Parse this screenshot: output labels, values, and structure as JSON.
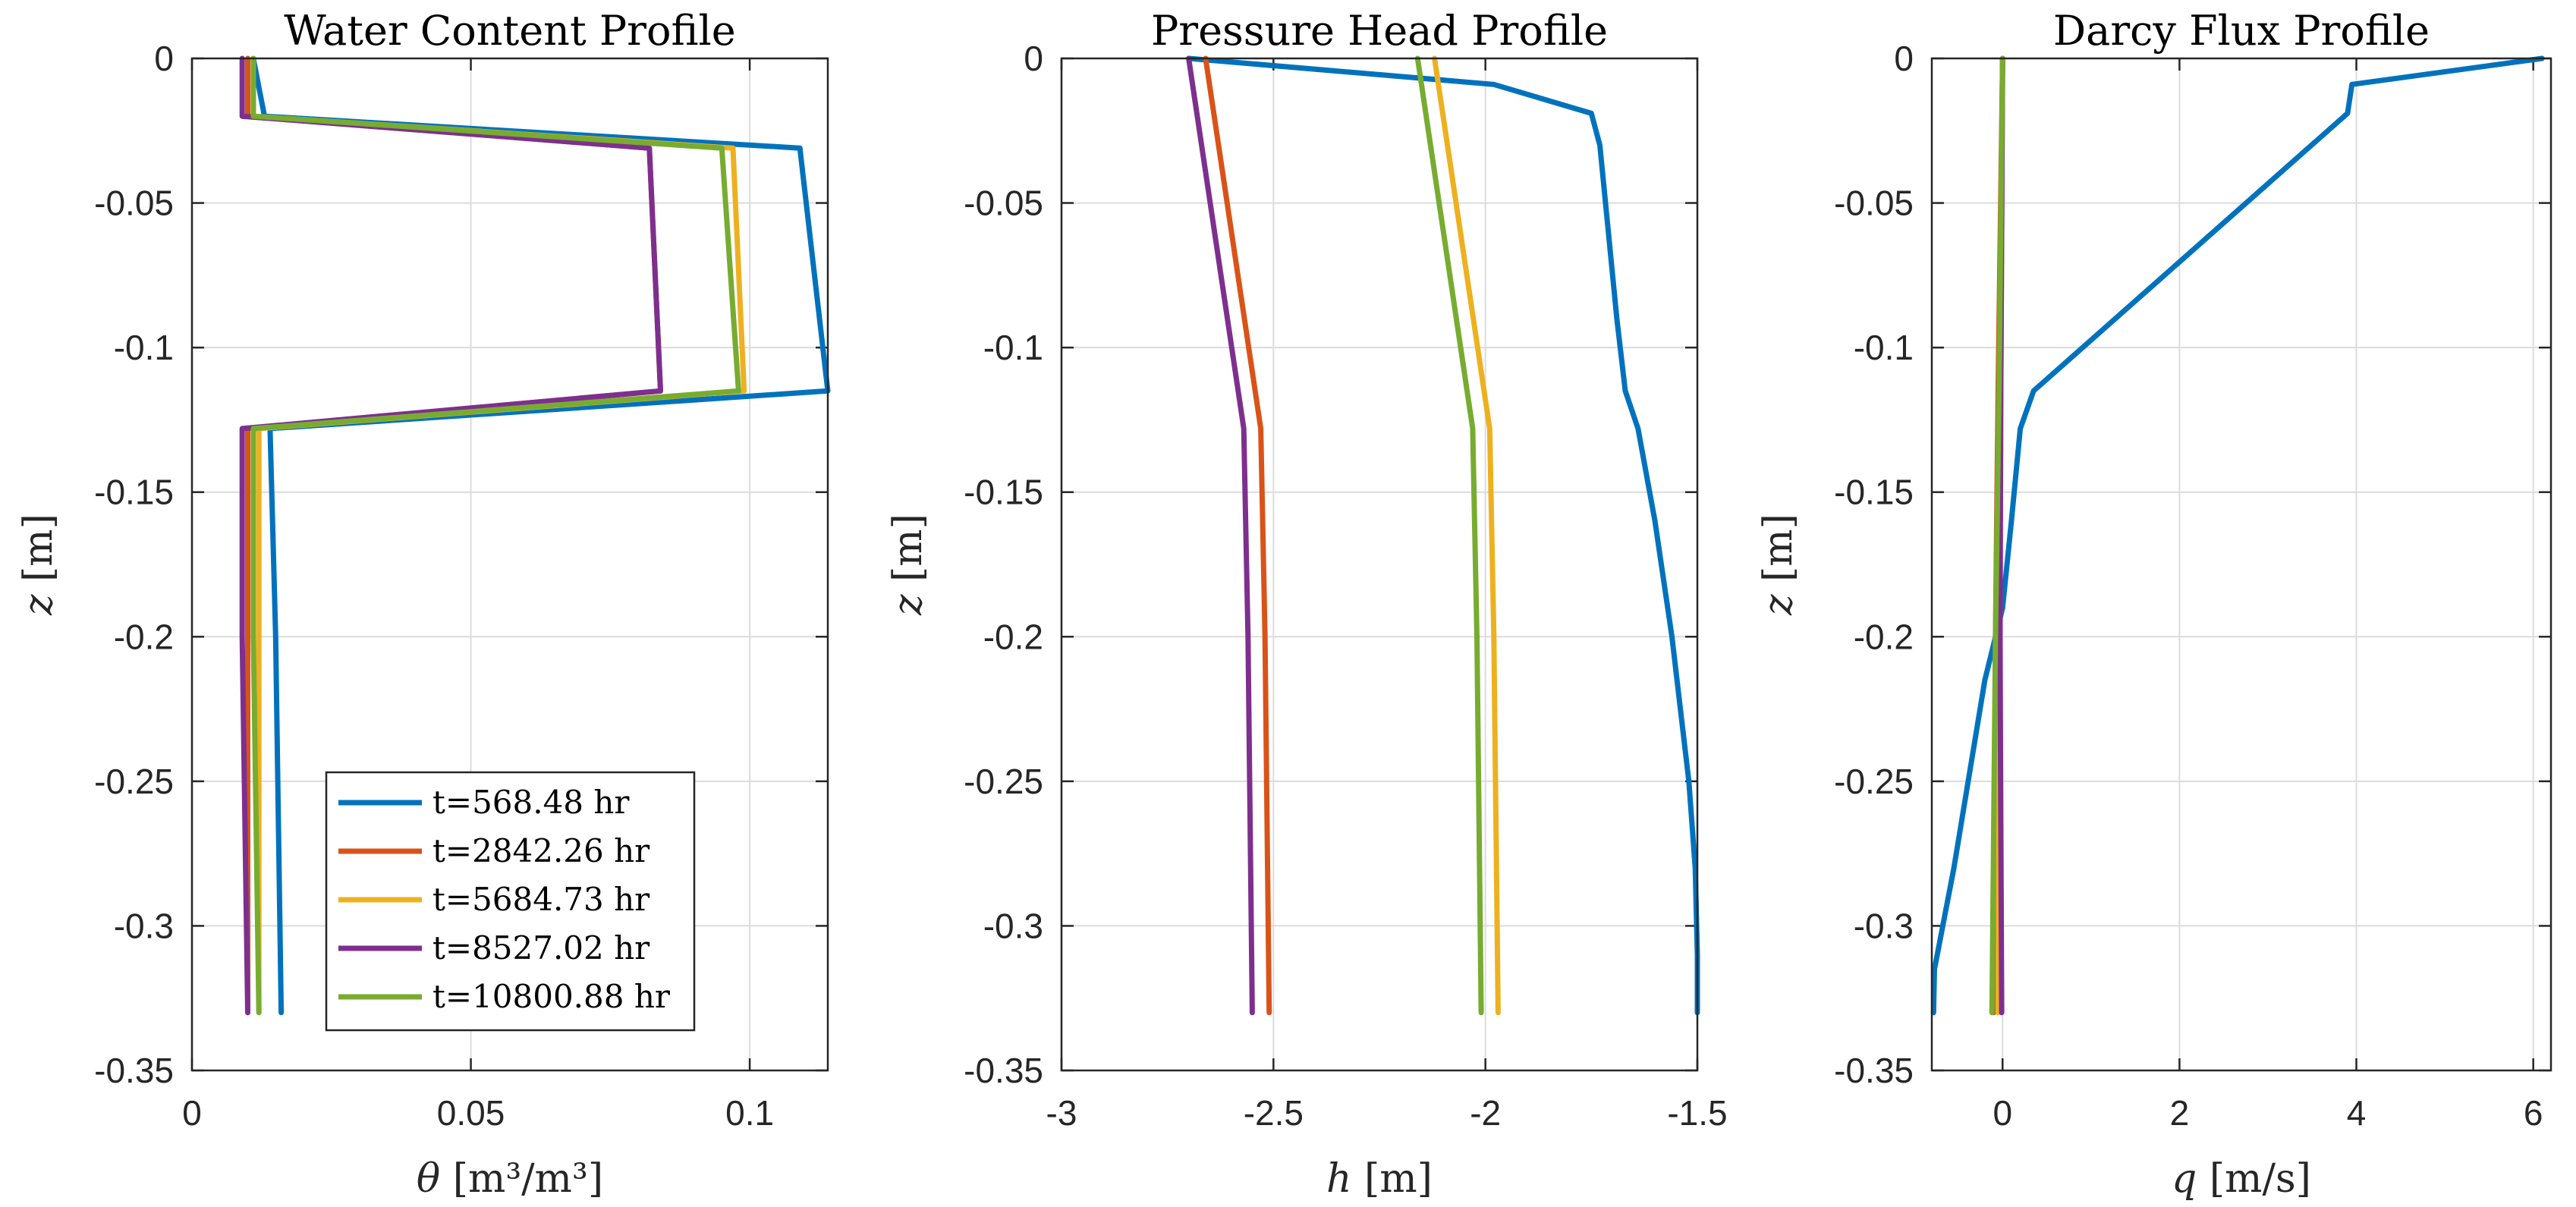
{
  "chart_data": [
    {
      "type": "line",
      "title": "Water Content Profile",
      "xlabel": "θ [m³/m³]",
      "ylabel": "z [m]",
      "xlim": [
        0,
        0.114
      ],
      "ylim": [
        -0.35,
        0
      ],
      "xticks": [
        0,
        0.05,
        0.1
      ],
      "xtick_labels": [
        "0",
        "0.05",
        "0.1"
      ],
      "yticks": [
        0,
        -0.05,
        -0.1,
        -0.15,
        -0.2,
        -0.25,
        -0.3,
        -0.35
      ],
      "ytick_labels": [
        "0",
        "-0.05",
        "-0.1",
        "-0.15",
        "-0.2",
        "-0.25",
        "-0.3",
        "-0.35"
      ],
      "grid": true,
      "legend": "bottom-right",
      "series": [
        {
          "name": "t=568.48 hr",
          "color": "#0072BD",
          "x": [
            0.011,
            0.012,
            0.013,
            0.109,
            0.114,
            0.014,
            0.015,
            0.016
          ],
          "y": [
            0,
            -0.01,
            -0.02,
            -0.031,
            -0.115,
            -0.128,
            -0.2,
            -0.33
          ]
        },
        {
          "name": "t=2842.26 hr",
          "color": "#D95319",
          "x": [
            0.01,
            0.01,
            0.01,
            0.082,
            0.084,
            0.01,
            0.01,
            0.01
          ],
          "y": [
            0,
            -0.01,
            -0.02,
            -0.031,
            -0.115,
            -0.128,
            -0.2,
            -0.33
          ]
        },
        {
          "name": "t=5684.73 hr",
          "color": "#EDB120",
          "x": [
            0.011,
            0.011,
            0.011,
            0.097,
            0.099,
            0.012,
            0.012,
            0.012
          ],
          "y": [
            0,
            -0.01,
            -0.02,
            -0.031,
            -0.115,
            -0.128,
            -0.2,
            -0.33
          ]
        },
        {
          "name": "t=8527.02 hr",
          "color": "#7E2F8E",
          "x": [
            0.009,
            0.009,
            0.009,
            0.082,
            0.084,
            0.009,
            0.009,
            0.01
          ],
          "y": [
            0,
            -0.01,
            -0.02,
            -0.031,
            -0.115,
            -0.128,
            -0.2,
            -0.33
          ]
        },
        {
          "name": "t=10800.88 hr",
          "color": "#77AC30",
          "x": [
            0.011,
            0.011,
            0.011,
            0.095,
            0.098,
            0.011,
            0.011,
            0.012
          ],
          "y": [
            0,
            -0.01,
            -0.02,
            -0.031,
            -0.115,
            -0.128,
            -0.2,
            -0.33
          ]
        }
      ]
    },
    {
      "type": "line",
      "title": "Pressure Head Profile",
      "xlabel": "h [m]",
      "ylabel": "z [m]",
      "xlim": [
        -3,
        -1.5
      ],
      "ylim": [
        -0.35,
        0
      ],
      "xticks": [
        -3,
        -2.5,
        -2,
        -1.5
      ],
      "xtick_labels": [
        "-3",
        "-2.5",
        "-2",
        "-1.5"
      ],
      "yticks": [
        0,
        -0.05,
        -0.1,
        -0.15,
        -0.2,
        -0.25,
        -0.3,
        -0.35
      ],
      "ytick_labels": [
        "0",
        "-0.05",
        "-0.1",
        "-0.15",
        "-0.2",
        "-0.25",
        "-0.3",
        "-0.35"
      ],
      "grid": true,
      "series": [
        {
          "name": "t=568.48 hr",
          "color": "#0072BD",
          "x": [
            -2.7,
            -1.98,
            -1.75,
            -1.73,
            -1.71,
            -1.69,
            -1.67,
            -1.64,
            -1.6,
            -1.56,
            -1.52,
            -1.505,
            -1.5,
            -1.5
          ],
          "y": [
            0,
            -0.009,
            -0.019,
            -0.03,
            -0.06,
            -0.09,
            -0.115,
            -0.128,
            -0.16,
            -0.2,
            -0.25,
            -0.28,
            -0.31,
            -0.33
          ]
        },
        {
          "name": "t=2842.26 hr",
          "color": "#D95319",
          "x": [
            -2.66,
            -2.53,
            -2.52,
            -2.51
          ],
          "y": [
            0,
            -0.128,
            -0.2,
            -0.33
          ]
        },
        {
          "name": "t=5684.73 hr",
          "color": "#EDB120",
          "x": [
            -2.12,
            -1.99,
            -1.98,
            -1.97
          ],
          "y": [
            0,
            -0.128,
            -0.2,
            -0.33
          ]
        },
        {
          "name": "t=8527.02 hr",
          "color": "#7E2F8E",
          "x": [
            -2.7,
            -2.57,
            -2.56,
            -2.55
          ],
          "y": [
            0,
            -0.128,
            -0.2,
            -0.33
          ]
        },
        {
          "name": "t=10800.88 hr",
          "color": "#77AC30",
          "x": [
            -2.16,
            -2.03,
            -2.02,
            -2.01
          ],
          "y": [
            0,
            -0.128,
            -0.2,
            -0.33
          ]
        }
      ]
    },
    {
      "type": "line",
      "title": "Darcy Flux Profile",
      "xlabel": "q [m/s]",
      "ylabel": "z [m]",
      "xlim": [
        -0.8,
        6.2
      ],
      "ylim": [
        -0.35,
        0
      ],
      "xticks": [
        0,
        2,
        4,
        6
      ],
      "xtick_labels": [
        "0",
        "2",
        "4",
        "6"
      ],
      "yticks": [
        0,
        -0.05,
        -0.1,
        -0.15,
        -0.2,
        -0.25,
        -0.3,
        -0.35
      ],
      "ytick_labels": [
        "0",
        "-0.05",
        "-0.1",
        "-0.15",
        "-0.2",
        "-0.25",
        "-0.3",
        "-0.35"
      ],
      "grid": true,
      "series": [
        {
          "name": "t=568.48 hr",
          "color": "#0072BD",
          "x": [
            6.1,
            3.95,
            3.9,
            0.35,
            0.2,
            0.1,
            0.0,
            -0.2,
            -0.55,
            -0.77,
            -0.78
          ],
          "y": [
            0,
            -0.009,
            -0.019,
            -0.115,
            -0.128,
            -0.16,
            -0.19,
            -0.215,
            -0.28,
            -0.315,
            -0.33
          ]
        },
        {
          "name": "t=2842.26 hr",
          "color": "#D95319",
          "x": [
            0,
            -0.05,
            -0.08,
            -0.1
          ],
          "y": [
            0,
            -0.115,
            -0.2,
            -0.33
          ]
        },
        {
          "name": "t=5684.73 hr",
          "color": "#EDB120",
          "x": [
            0,
            -0.02,
            -0.05
          ],
          "y": [
            0,
            -0.115,
            -0.33
          ]
        },
        {
          "name": "t=8527.02 hr",
          "color": "#7E2F8E",
          "x": [
            0,
            -0.02,
            -0.03,
            -0.01
          ],
          "y": [
            0,
            -0.115,
            -0.2,
            -0.33
          ]
        },
        {
          "name": "t=10800.88 hr",
          "color": "#77AC30",
          "x": [
            0,
            -0.04,
            -0.08,
            -0.12
          ],
          "y": [
            0,
            -0.115,
            -0.2,
            -0.33
          ]
        }
      ]
    }
  ]
}
